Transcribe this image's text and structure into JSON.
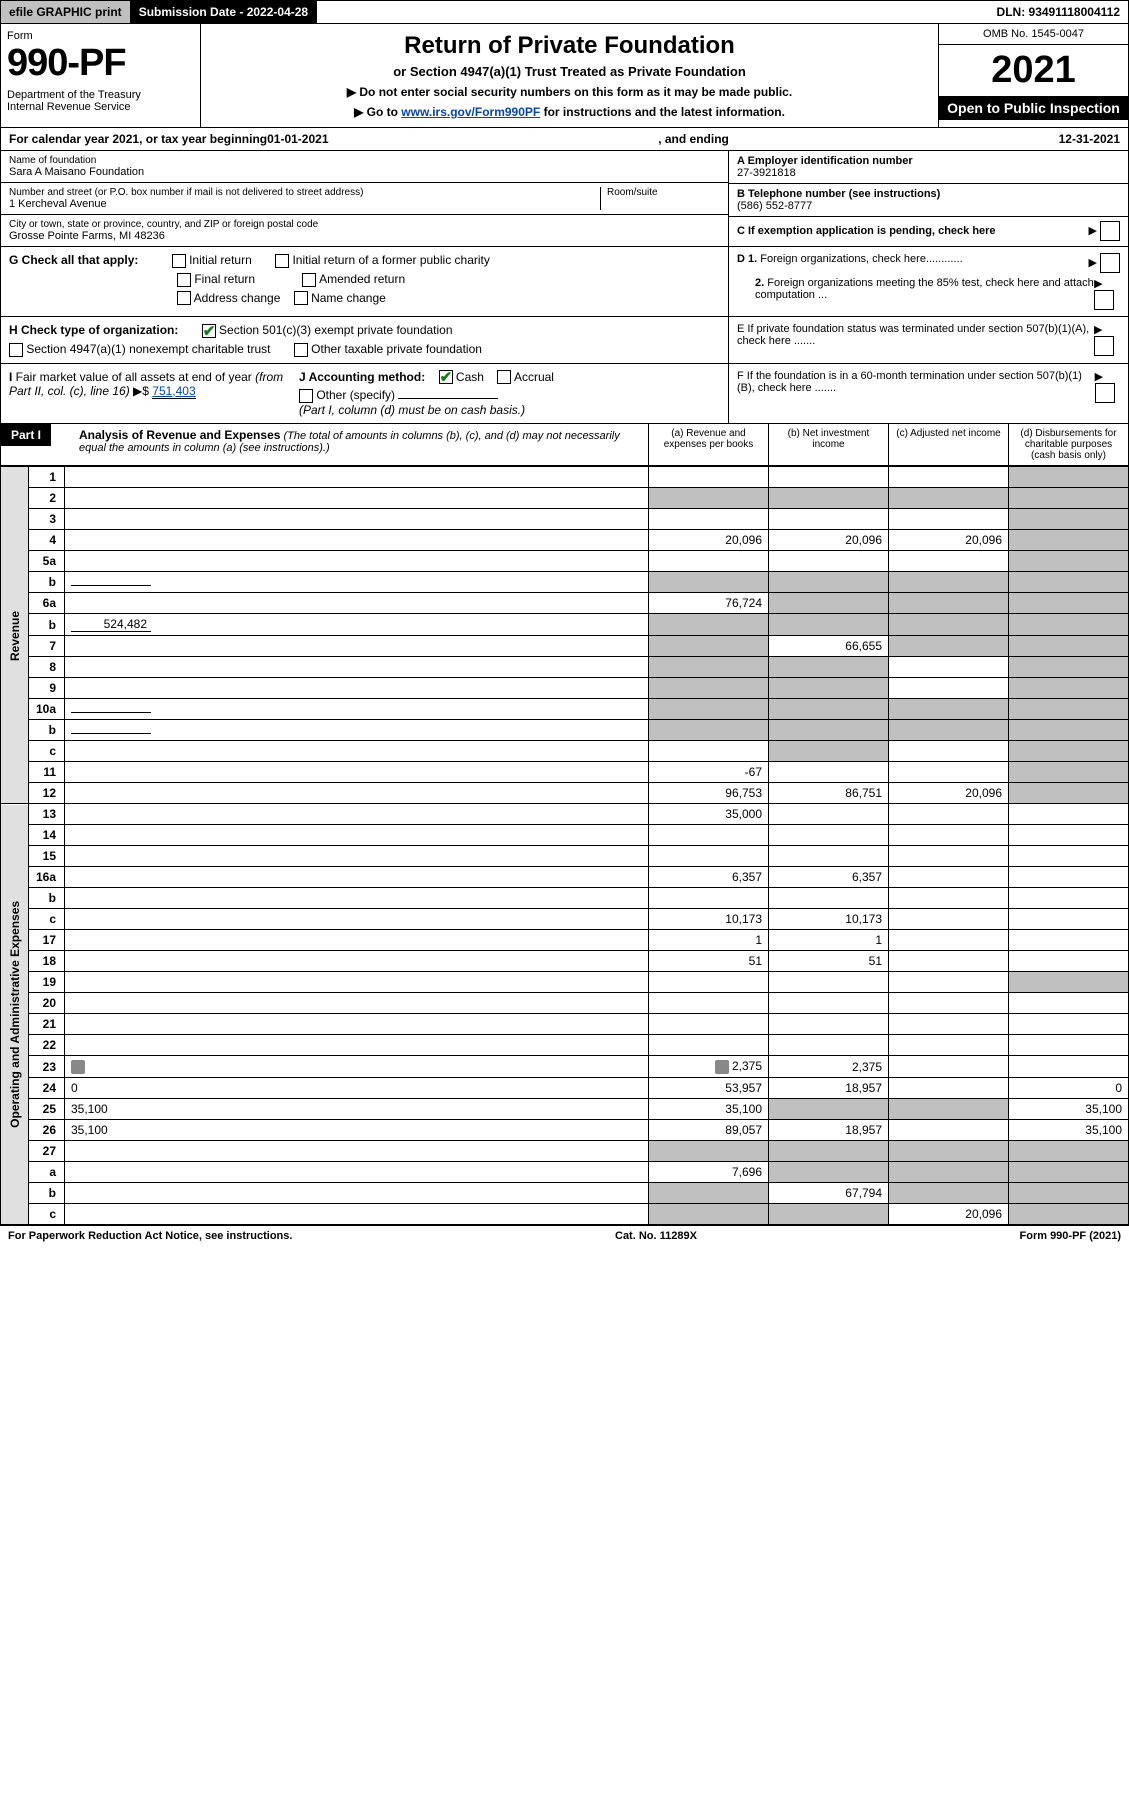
{
  "topbar": {
    "efile": "efile GRAPHIC print",
    "subdate_label": "Submission Date - 2022-04-28",
    "dln": "DLN: 93491118004112"
  },
  "header": {
    "form_label": "Form",
    "form_num": "990-PF",
    "dept": "Department of the Treasury\nInternal Revenue Service",
    "title": "Return of Private Foundation",
    "subtitle": "or Section 4947(a)(1) Trust Treated as Private Foundation",
    "note1": "▶ Do not enter social security numbers on this form as it may be made public.",
    "note2_pre": "▶ Go to ",
    "note2_link": "www.irs.gov/Form990PF",
    "note2_post": " for instructions and the latest information.",
    "omb": "OMB No. 1545-0047",
    "year": "2021",
    "open": "Open to Public Inspection"
  },
  "calendar": {
    "text_pre": "For calendar year 2021, or tax year beginning ",
    "begin": "01-01-2021",
    "mid": " , and ending ",
    "end": "12-31-2021"
  },
  "foundation": {
    "name_label": "Name of foundation",
    "name": "Sara A Maisano Foundation",
    "addr_label": "Number and street (or P.O. box number if mail is not delivered to street address)",
    "addr": "1 Kercheval Avenue",
    "room_label": "Room/suite",
    "city_label": "City or town, state or province, country, and ZIP or foreign postal code",
    "city": "Grosse Pointe Farms, MI  48236",
    "ein_label": "A Employer identification number",
    "ein": "27-3921818",
    "phone_label": "B Telephone number (see instructions)",
    "phone": "(586) 552-8777",
    "c_label": "C If exemption application is pending, check here"
  },
  "checks": {
    "g_label": "G Check all that apply:",
    "g_items": [
      "Initial return",
      "Initial return of a former public charity",
      "Final return",
      "Amended return",
      "Address change",
      "Name change"
    ],
    "d1": "D 1. Foreign organizations, check here............",
    "d2": "2. Foreign organizations meeting the 85% test, check here and attach computation ...",
    "e": "E  If private foundation status was terminated under section 507(b)(1)(A), check here .......",
    "h_label": "H Check type of organization:",
    "h1": "Section 501(c)(3) exempt private foundation",
    "h2": "Section 4947(a)(1) nonexempt charitable trust",
    "h3": "Other taxable private foundation",
    "i_label": "I Fair market value of all assets at end of year (from Part II, col. (c), line 16) ▶$",
    "i_val": "751,403",
    "j_label": "J Accounting method:",
    "j_cash": "Cash",
    "j_accrual": "Accrual",
    "j_other": "Other (specify)",
    "j_note": "(Part I, column (d) must be on cash basis.)",
    "f": "F  If the foundation is in a 60-month termination under section 507(b)(1)(B), check here ......."
  },
  "part1": {
    "label": "Part I",
    "title": "Analysis of Revenue and Expenses",
    "title_note": "(The total of amounts in columns (b), (c), and (d) may not necessarily equal the amounts in column (a) (see instructions).)",
    "col_a": "(a) Revenue and expenses per books",
    "col_b": "(b) Net investment income",
    "col_c": "(c) Adjusted net income",
    "col_d": "(d) Disbursements for charitable purposes (cash basis only)"
  },
  "side_labels": {
    "revenue": "Revenue",
    "expenses": "Operating and Administrative Expenses"
  },
  "rows": [
    {
      "n": "1",
      "d": "",
      "a": "",
      "b": "",
      "c": "",
      "shade_d": true
    },
    {
      "n": "2",
      "d": "",
      "a": "",
      "b": "",
      "c": "",
      "shade_all": true,
      "shade_d": true,
      "checkmark": true
    },
    {
      "n": "3",
      "d": "",
      "a": "",
      "b": "",
      "c": "",
      "shade_d": true
    },
    {
      "n": "4",
      "d": "",
      "a": "20,096",
      "b": "20,096",
      "c": "20,096",
      "shade_d": true
    },
    {
      "n": "5a",
      "d": "",
      "a": "",
      "b": "",
      "c": "",
      "shade_d": true
    },
    {
      "n": "b",
      "d": "",
      "a": "",
      "b": "",
      "c": "",
      "shade_all": true,
      "inline": ""
    },
    {
      "n": "6a",
      "d": "",
      "a": "76,724",
      "b": "",
      "c": "",
      "shade_bcd": true
    },
    {
      "n": "b",
      "d": "",
      "a": "",
      "b": "",
      "c": "",
      "shade_all": true,
      "inline": "524,482"
    },
    {
      "n": "7",
      "d": "",
      "a": "",
      "b": "66,655",
      "c": "",
      "shade_a": true,
      "shade_cd": true
    },
    {
      "n": "8",
      "d": "",
      "a": "",
      "b": "",
      "c": "",
      "shade_ab": true,
      "shade_d": true
    },
    {
      "n": "9",
      "d": "",
      "a": "",
      "b": "",
      "c": "",
      "shade_ab": true,
      "shade_d": true
    },
    {
      "n": "10a",
      "d": "",
      "a": "",
      "b": "",
      "c": "",
      "shade_all": true,
      "inline": ""
    },
    {
      "n": "b",
      "d": "",
      "a": "",
      "b": "",
      "c": "",
      "shade_all": true,
      "inline": ""
    },
    {
      "n": "c",
      "d": "",
      "a": "",
      "b": "",
      "c": "",
      "shade_b": true,
      "shade_d": true
    },
    {
      "n": "11",
      "d": "",
      "a": "-67",
      "b": "",
      "c": "",
      "shade_d": true
    },
    {
      "n": "12",
      "d": "",
      "a": "96,753",
      "b": "86,751",
      "c": "20,096",
      "shade_d": true
    }
  ],
  "exp_rows": [
    {
      "n": "13",
      "d": "",
      "a": "35,000",
      "b": "",
      "c": ""
    },
    {
      "n": "14",
      "d": "",
      "a": "",
      "b": "",
      "c": ""
    },
    {
      "n": "15",
      "d": "",
      "a": "",
      "b": "",
      "c": ""
    },
    {
      "n": "16a",
      "d": "",
      "a": "6,357",
      "b": "6,357",
      "c": ""
    },
    {
      "n": "b",
      "d": "",
      "a": "",
      "b": "",
      "c": ""
    },
    {
      "n": "c",
      "d": "",
      "a": "10,173",
      "b": "10,173",
      "c": ""
    },
    {
      "n": "17",
      "d": "",
      "a": "1",
      "b": "1",
      "c": ""
    },
    {
      "n": "18",
      "d": "",
      "a": "51",
      "b": "51",
      "c": ""
    },
    {
      "n": "19",
      "d": "",
      "a": "",
      "b": "",
      "c": "",
      "shade_d": true
    },
    {
      "n": "20",
      "d": "",
      "a": "",
      "b": "",
      "c": ""
    },
    {
      "n": "21",
      "d": "",
      "a": "",
      "b": "",
      "c": ""
    },
    {
      "n": "22",
      "d": "",
      "a": "",
      "b": "",
      "c": ""
    },
    {
      "n": "23",
      "d": "",
      "a": "2,375",
      "b": "2,375",
      "c": "",
      "icon": true
    },
    {
      "n": "24",
      "d": "0",
      "a": "53,957",
      "b": "18,957",
      "c": ""
    },
    {
      "n": "25",
      "d": "35,100",
      "a": "35,100",
      "b": "",
      "c": "",
      "shade_bc": true
    },
    {
      "n": "26",
      "d": "35,100",
      "a": "89,057",
      "b": "18,957",
      "c": ""
    },
    {
      "n": "27",
      "d": "",
      "a": "",
      "b": "",
      "c": "",
      "shade_all": true
    },
    {
      "n": "a",
      "d": "",
      "a": "7,696",
      "b": "",
      "c": "",
      "shade_bcd": true
    },
    {
      "n": "b",
      "d": "",
      "a": "",
      "b": "67,794",
      "c": "",
      "shade_a": true,
      "shade_cd": true
    },
    {
      "n": "c",
      "d": "",
      "a": "",
      "b": "",
      "c": "20,096",
      "shade_ab": true,
      "shade_d": true
    }
  ],
  "footer": {
    "left": "For Paperwork Reduction Act Notice, see instructions.",
    "center": "Cat. No. 11289X",
    "right": "Form 990-PF (2021)"
  }
}
